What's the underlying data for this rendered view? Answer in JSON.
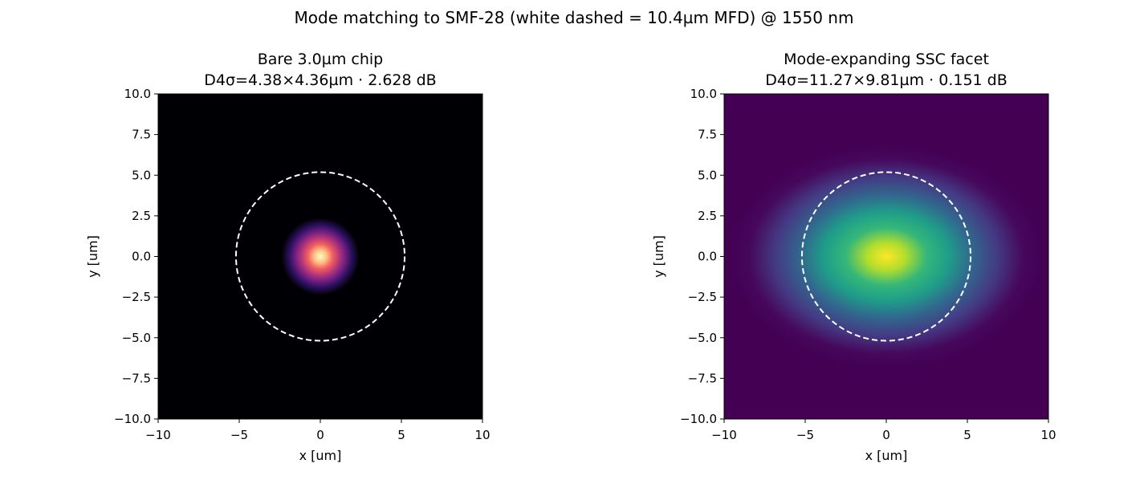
{
  "figure": {
    "suptitle": "Mode matching to SMF-28 (white dashed = 10.4µm MFD) @ 1550 nm"
  },
  "chart_data": [
    {
      "type": "heatmap",
      "title_line1": "Bare 3.0µm chip",
      "title_line2": "D4σ=4.38×4.36µm · 2.628 dB",
      "xlabel": "x [um]",
      "ylabel": "y [um]",
      "xlim": [
        -10,
        10
      ],
      "ylim": [
        -10,
        10
      ],
      "xticks": [
        -10,
        -5,
        0,
        5,
        10
      ],
      "xtick_labels": [
        "−10",
        "−5",
        "0",
        "5",
        "10"
      ],
      "yticks": [
        10,
        7.5,
        5,
        2.5,
        0,
        -2.5,
        -5,
        -7.5,
        -10
      ],
      "ytick_labels": [
        "10.0",
        "7.5",
        "5.0",
        "2.5",
        "0.0",
        "−2.5",
        "−5.0",
        "−7.5",
        "−10.0"
      ],
      "colormap": "magma",
      "mode_d4sigma_um": [
        4.38,
        4.36
      ],
      "mode_center_um": [
        0,
        0
      ],
      "loss_db": 2.628,
      "fiber_circle": {
        "center_um": [
          0,
          0
        ],
        "diameter_um": 10.4,
        "color": "#ffffff",
        "style": "dashed"
      }
    },
    {
      "type": "heatmap",
      "title_line1": "Mode-expanding SSC facet",
      "title_line2": "D4σ=11.27×9.81µm · 0.151 dB",
      "xlabel": "x [um]",
      "ylabel": "y [um]",
      "xlim": [
        -10,
        10
      ],
      "ylim": [
        -10,
        10
      ],
      "xticks": [
        -10,
        -5,
        0,
        5,
        10
      ],
      "xtick_labels": [
        "−10",
        "−5",
        "0",
        "5",
        "10"
      ],
      "yticks": [
        10,
        7.5,
        5,
        2.5,
        0,
        -2.5,
        -5,
        -7.5,
        -10
      ],
      "ytick_labels": [
        "10.0",
        "7.5",
        "5.0",
        "2.5",
        "0.0",
        "−2.5",
        "−5.0",
        "−7.5",
        "−10.0"
      ],
      "colormap": "viridis",
      "mode_d4sigma_um": [
        11.27,
        9.81
      ],
      "mode_center_um": [
        0,
        0
      ],
      "loss_db": 0.151,
      "fiber_circle": {
        "center_um": [
          0,
          0
        ],
        "diameter_um": 10.4,
        "color": "#ffffff",
        "style": "dashed"
      }
    }
  ]
}
